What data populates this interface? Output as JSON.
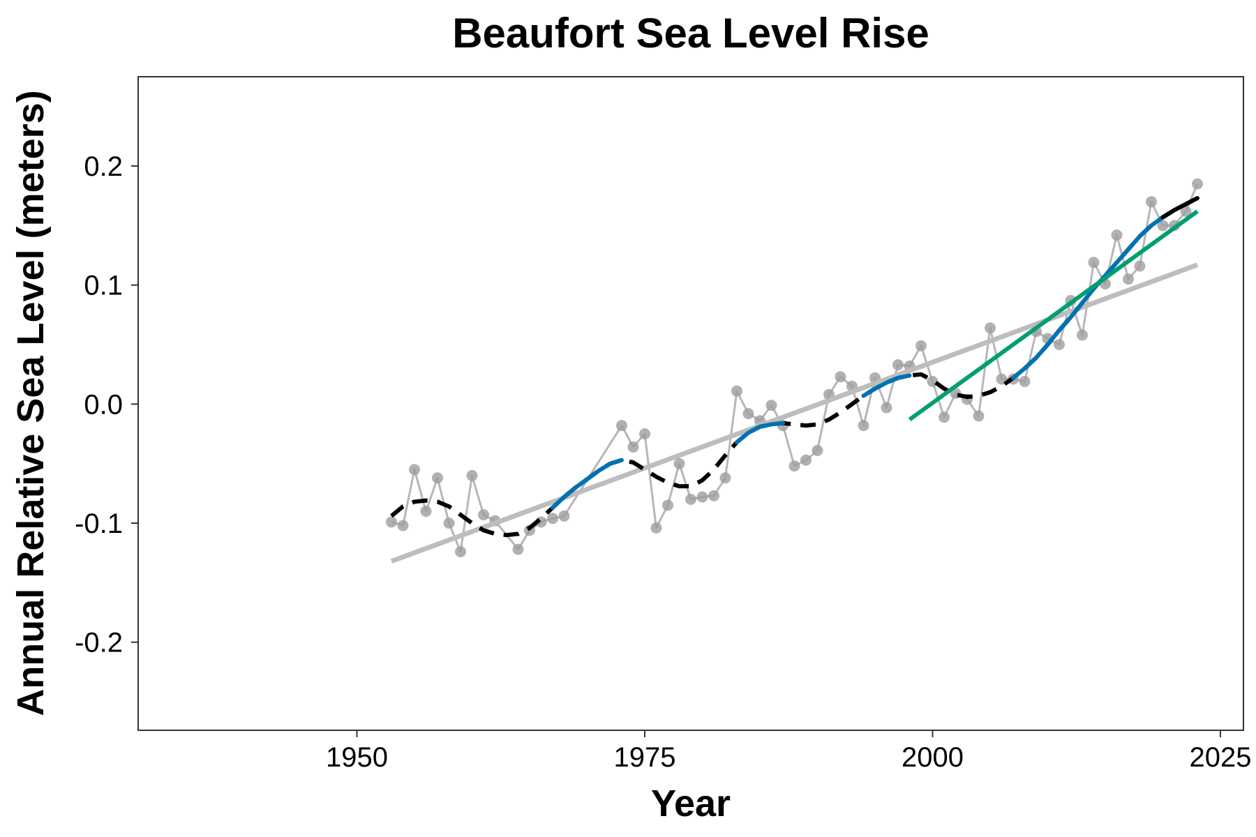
{
  "chart_data": {
    "type": "line",
    "title": "Beaufort Sea Level Rise",
    "xlabel": "Year",
    "ylabel": "Annual Relative Sea Level (meters)",
    "xlim": [
      1931,
      2027
    ],
    "ylim": [
      -0.274,
      0.275
    ],
    "xticks": [
      1950,
      1975,
      2000,
      2025
    ],
    "yticks": [
      0.2,
      0.1,
      0.0,
      -0.1,
      -0.2
    ],
    "ytick_labels": [
      "0.2",
      "0.1",
      "0.0",
      "-0.1",
      "-0.2"
    ],
    "grid": false,
    "legend": "none",
    "colors": {
      "observed": "#9e9e9e",
      "linear_trend": "#bdbdbd",
      "smoothed": "#000000",
      "smoothed_increasing": "#0072b2",
      "recent_trend": "#009e73"
    },
    "observed": {
      "x": [
        1953,
        1954,
        1955,
        1956,
        1957,
        1958,
        1959,
        1960,
        1961,
        1962,
        1964,
        1965,
        1966,
        1967,
        1968,
        1973,
        1974,
        1975,
        1976,
        1977,
        1978,
        1979,
        1980,
        1981,
        1982,
        1983,
        1984,
        1985,
        1986,
        1987,
        1988,
        1989,
        1990,
        1991,
        1992,
        1993,
        1994,
        1995,
        1996,
        1997,
        1998,
        1999,
        2000,
        2001,
        2002,
        2003,
        2004,
        2005,
        2006,
        2007,
        2008,
        2009,
        2010,
        2011,
        2012,
        2013,
        2014,
        2015,
        2016,
        2017,
        2018,
        2019,
        2020,
        2021,
        2022,
        2023
      ],
      "y": [
        -0.099,
        -0.102,
        -0.055,
        -0.09,
        -0.062,
        -0.1,
        -0.124,
        -0.06,
        -0.093,
        -0.098,
        -0.122,
        -0.106,
        -0.099,
        -0.096,
        -0.094,
        -0.018,
        -0.036,
        -0.025,
        -0.104,
        -0.085,
        -0.05,
        -0.08,
        -0.078,
        -0.077,
        -0.062,
        0.011,
        -0.008,
        -0.014,
        -0.001,
        -0.018,
        -0.052,
        -0.047,
        -0.039,
        0.008,
        0.023,
        0.015,
        -0.018,
        0.022,
        -0.003,
        0.033,
        0.032,
        0.049,
        0.019,
        -0.011,
        0.009,
        0.004,
        -0.01,
        0.064,
        0.021,
        0.021,
        0.019,
        0.061,
        0.055,
        0.05,
        0.087,
        0.058,
        0.119,
        0.101,
        0.142,
        0.105,
        0.116,
        0.17,
        0.15,
        0.15,
        0.162,
        0.185
      ]
    },
    "linear_trend": {
      "x": [
        1953,
        2023
      ],
      "y": [
        -0.132,
        0.117
      ]
    },
    "recent_trend": {
      "x": [
        1998,
        2023
      ],
      "y": [
        -0.013,
        0.162
      ]
    },
    "smoothed": {
      "x": [
        1953,
        1954,
        1955,
        1956,
        1957,
        1958,
        1959,
        1960,
        1961,
        1962,
        1963,
        1964,
        1965,
        1966,
        1967,
        1968,
        1969,
        1970,
        1971,
        1972,
        1973,
        1974,
        1975,
        1976,
        1977,
        1978,
        1979,
        1980,
        1981,
        1982,
        1983,
        1984,
        1985,
        1986,
        1987,
        1988,
        1989,
        1990,
        1991,
        1992,
        1993,
        1994,
        1995,
        1996,
        1997,
        1998,
        1999,
        2000,
        2001,
        2002,
        2003,
        2004,
        2005,
        2006,
        2007,
        2008,
        2009,
        2010,
        2011,
        2012,
        2013,
        2014,
        2015,
        2016,
        2017,
        2018,
        2019,
        2020,
        2021,
        2022,
        2023
      ],
      "y": [
        -0.094,
        -0.086,
        -0.082,
        -0.081,
        -0.082,
        -0.086,
        -0.093,
        -0.1,
        -0.106,
        -0.109,
        -0.11,
        -0.109,
        -0.104,
        -0.096,
        -0.087,
        -0.078,
        -0.07,
        -0.063,
        -0.056,
        -0.05,
        -0.047,
        -0.049,
        -0.055,
        -0.061,
        -0.066,
        -0.069,
        -0.069,
        -0.064,
        -0.055,
        -0.043,
        -0.032,
        -0.024,
        -0.019,
        -0.017,
        -0.016,
        -0.017,
        -0.018,
        -0.017,
        -0.013,
        -0.007,
        0.0,
        0.007,
        0.013,
        0.018,
        0.022,
        0.024,
        0.025,
        0.02,
        0.013,
        0.008,
        0.006,
        0.007,
        0.01,
        0.015,
        0.022,
        0.03,
        0.039,
        0.05,
        0.062,
        0.073,
        0.085,
        0.097,
        0.108,
        0.119,
        0.13,
        0.141,
        0.15,
        0.157,
        0.163,
        0.168,
        0.173
      ],
      "increasing_spans": [
        [
          1967,
          1973
        ],
        [
          1983,
          1987
        ],
        [
          1994,
          1998
        ],
        [
          2007,
          2020
        ]
      ]
    }
  }
}
